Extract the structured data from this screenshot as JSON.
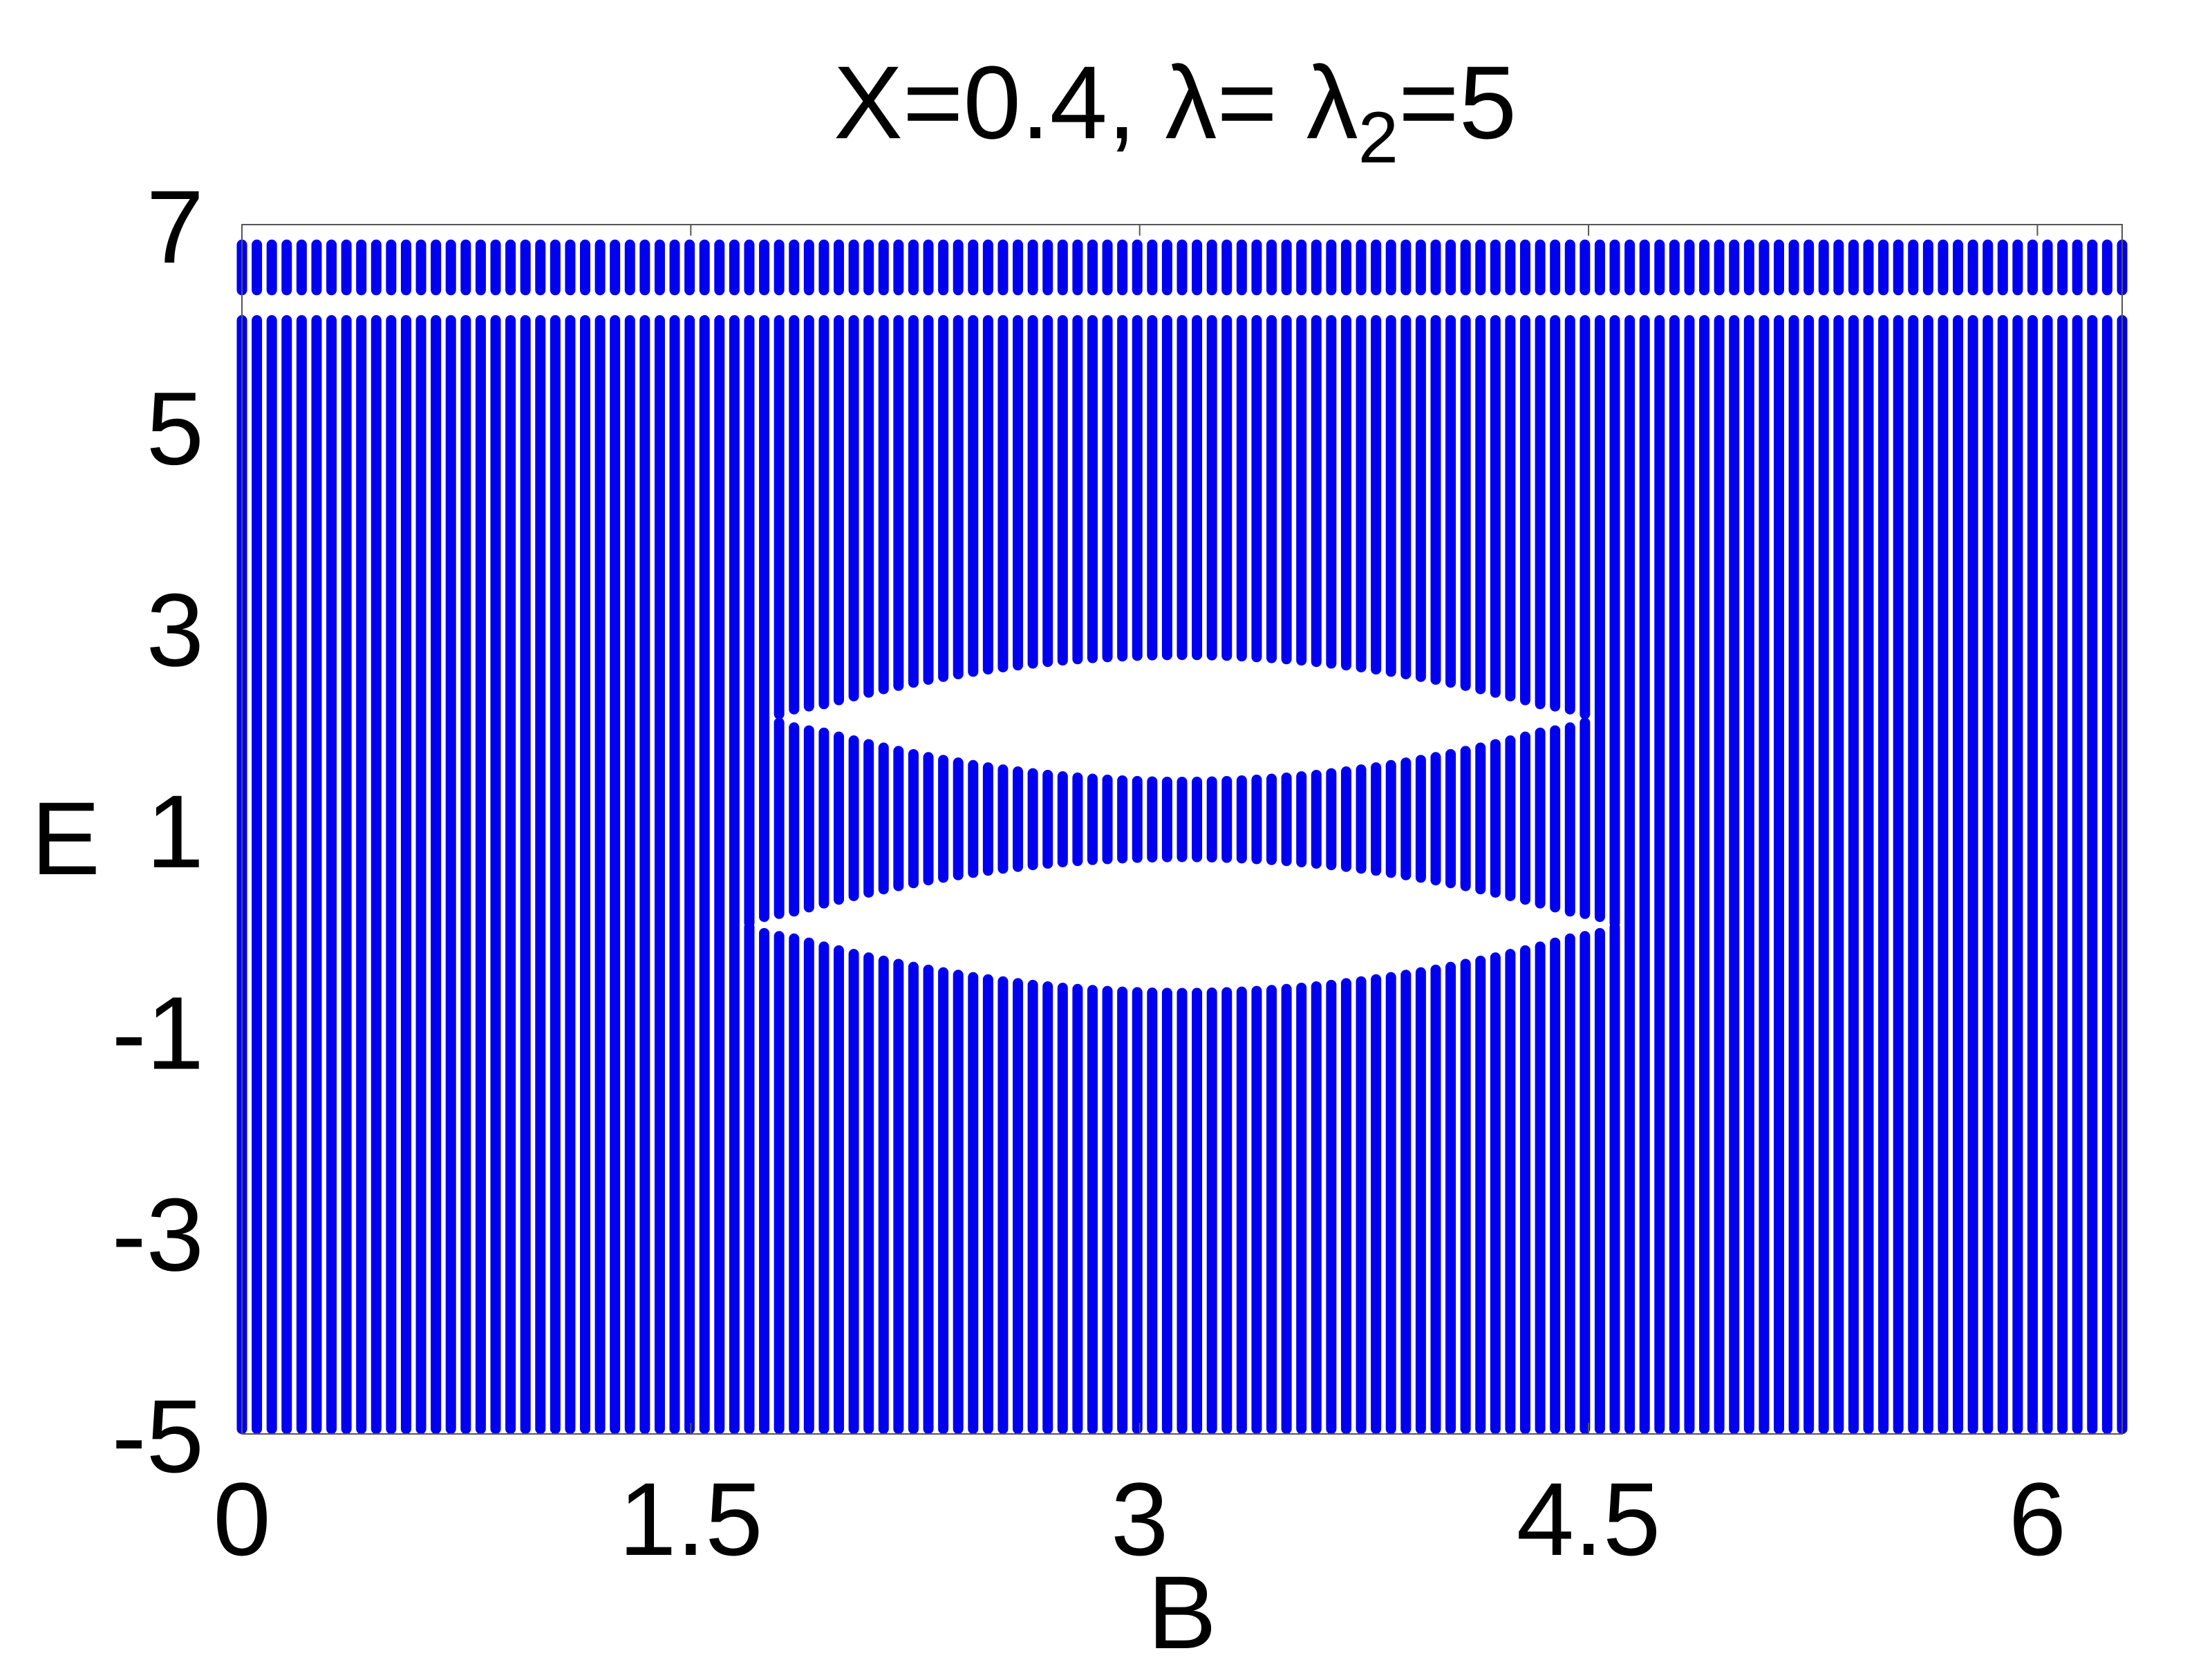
{
  "chart_data": {
    "type": "scatter",
    "title": "X=0.4, λ= λ",
    "title_subscript": "2",
    "title_suffix": "=5",
    "xlabel": "B",
    "ylabel": "E",
    "xlim": [
      0,
      6.2832
    ],
    "ylim": [
      -5,
      7
    ],
    "xticks": [
      0,
      1.5,
      3,
      4.5,
      6
    ],
    "xtick_labels": [
      "0",
      "1.5",
      "3",
      "4.5",
      "6"
    ],
    "yticks": [
      -5,
      -3,
      -1,
      1,
      3,
      5,
      7
    ],
    "ytick_labels": [
      "-5",
      "-3",
      "-1",
      "1",
      "3",
      "5",
      "7"
    ],
    "grid": false,
    "marker_color": "#0000ee",
    "n_columns": 127,
    "bands": [
      {
        "name": "upper",
        "e_min": 6.35,
        "e_max": 6.8
      },
      {
        "name": "main",
        "e_min": -4.95,
        "e_max": 6.05
      }
    ],
    "gaps": [
      {
        "center_b": 3.1416,
        "e_low": 1.8,
        "e_high": 2.4,
        "b_halfwidth": 1.36,
        "max_halfheight": 0.7
      },
      {
        "center_b": 3.1416,
        "e_low": -0.25,
        "e_high": 0.35,
        "b_halfwidth": 1.45,
        "max_halfheight": 0.75
      }
    ]
  }
}
